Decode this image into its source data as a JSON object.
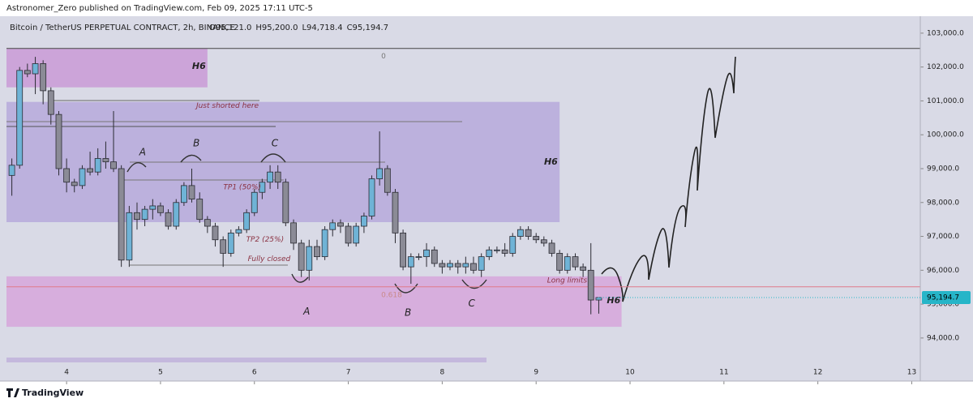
{
  "header": "Astronomer_Zero published on TradingView.com, Feb 09, 2025 17:11 UTC-5",
  "footer": "TradingView",
  "chart_data": {
    "type": "candlestick",
    "title": "Bitcoin / TetherUS PERPETUAL CONTRACT, 2h, BINANCE",
    "ohlc_text": [
      "O95,121.0",
      "H95,200.0",
      "L94,718.4",
      "C95,194.7"
    ],
    "x": [
      3.417,
      3.5,
      3.583,
      3.667,
      3.75,
      3.833,
      3.917,
      4,
      4.083,
      4.167,
      4.25,
      4.333,
      4.417,
      4.5,
      4.583,
      4.667,
      4.75,
      4.833,
      4.917,
      5,
      5.083,
      5.167,
      5.25,
      5.333,
      5.417,
      5.5,
      5.583,
      5.667,
      5.75,
      5.833,
      5.917,
      6,
      6.083,
      6.167,
      6.25,
      6.333,
      6.417,
      6.5,
      6.583,
      6.667,
      6.75,
      6.833,
      6.917,
      7,
      7.083,
      7.167,
      7.25,
      7.333,
      7.417,
      7.5,
      7.583,
      7.667,
      7.75,
      7.833,
      7.917,
      8,
      8.083,
      8.167,
      8.25,
      8.333,
      8.417,
      8.5,
      8.583,
      8.667,
      8.75,
      8.833,
      8.917,
      9,
      9.083,
      9.167,
      9.25,
      9.333,
      9.417,
      9.5,
      9.583,
      9.667
    ],
    "open": [
      98800,
      99100,
      101900,
      101800,
      102100,
      101300,
      100600,
      99000,
      98600,
      98500,
      99000,
      98900,
      99300,
      99200,
      99000,
      96300,
      97700,
      97500,
      97800,
      97900,
      97700,
      97300,
      98000,
      98500,
      98100,
      97500,
      97300,
      96900,
      96500,
      97100,
      97200,
      97700,
      98300,
      98600,
      98900,
      98600,
      97400,
      96800,
      96000,
      96700,
      96400,
      97200,
      97400,
      97300,
      96800,
      97300,
      97600,
      98700,
      99000,
      98300,
      97100,
      96100,
      96400,
      96400,
      96600,
      96200,
      96100,
      96200,
      96100,
      96200,
      96000,
      96400,
      96600,
      96600,
      96500,
      97000,
      97200,
      97000,
      96900,
      96800,
      96500,
      96000,
      96400,
      96100,
      96000,
      95121.0
    ],
    "high": [
      99300,
      102000,
      102100,
      102300,
      102200,
      101400,
      100700,
      99300,
      98700,
      99100,
      99500,
      99600,
      99800,
      100700,
      99100,
      97900,
      98000,
      97900,
      98100,
      98000,
      97800,
      98100,
      98600,
      99000,
      98300,
      97600,
      97400,
      97000,
      97200,
      97300,
      97800,
      98400,
      98700,
      99100,
      99100,
      98700,
      97500,
      96900,
      96900,
      96900,
      97300,
      97500,
      97500,
      97400,
      97400,
      97700,
      98800,
      100100,
      99100,
      98400,
      97200,
      96500,
      96500,
      96800,
      96700,
      96300,
      96300,
      96300,
      96400,
      96400,
      96500,
      96700,
      96700,
      96800,
      97100,
      97300,
      97300,
      97100,
      97000,
      96900,
      96600,
      96500,
      96500,
      96200,
      96800,
      95200.0
    ],
    "low": [
      98200,
      99000,
      101700,
      101200,
      100900,
      100300,
      98800,
      98300,
      98300,
      98400,
      98800,
      98800,
      99000,
      98900,
      96100,
      96100,
      97200,
      97300,
      97500,
      97600,
      97200,
      97200,
      97900,
      98000,
      97400,
      97100,
      96700,
      96100,
      96400,
      97000,
      97100,
      97600,
      98100,
      98400,
      98400,
      97300,
      96600,
      95800,
      95700,
      96300,
      96300,
      97000,
      97100,
      96700,
      96700,
      97100,
      97500,
      98500,
      98200,
      96800,
      96000,
      95600,
      96300,
      96100,
      96100,
      95900,
      96000,
      95900,
      95900,
      95900,
      95800,
      96300,
      96500,
      96400,
      96400,
      96900,
      96900,
      96800,
      96700,
      96400,
      95900,
      95900,
      96000,
      95800,
      94700,
      94718.4
    ],
    "close": [
      99100,
      101900,
      101800,
      102100,
      101300,
      100600,
      99000,
      98600,
      98500,
      99000,
      98900,
      99300,
      99200,
      99000,
      96300,
      97700,
      97500,
      97800,
      97900,
      97700,
      97300,
      98000,
      98500,
      98100,
      97500,
      97300,
      96900,
      96500,
      97100,
      97200,
      97700,
      98300,
      98600,
      98900,
      98600,
      97400,
      96800,
      96000,
      96700,
      96400,
      97200,
      97400,
      97300,
      96800,
      97300,
      97600,
      98700,
      99000,
      98300,
      97100,
      96100,
      96400,
      96400,
      96600,
      96200,
      96100,
      96200,
      96100,
      96200,
      96000,
      96400,
      96600,
      96600,
      96500,
      97000,
      97200,
      97000,
      96900,
      96800,
      96500,
      96000,
      96400,
      96100,
      96000,
      95121,
      95194.7
    ],
    "up_color": "#6fb3d6",
    "down_color": "#8b8b96",
    "xlim": [
      3.36,
      13.16
    ],
    "xticks": [
      4,
      5,
      6,
      7,
      8,
      9,
      10,
      11,
      12,
      13
    ],
    "ylim": [
      92920,
      103500
    ],
    "yticks": [
      {
        "value": 94000,
        "label": "94,000.0"
      },
      {
        "value": 95000,
        "label": "95,000.0"
      },
      {
        "value": 96000,
        "label": "96,000.0"
      },
      {
        "value": 97000,
        "label": "97,000.0"
      },
      {
        "value": 98000,
        "label": "98,000.0"
      },
      {
        "value": 99000,
        "label": "99,000.0"
      },
      {
        "value": 100000,
        "label": "100,000.0"
      },
      {
        "value": 101000,
        "label": "101,000.0"
      },
      {
        "value": 102000,
        "label": "102,000.0"
      },
      {
        "value": 103000,
        "label": "103,000.0"
      }
    ],
    "last_price": {
      "value": 95194.7,
      "label": "95,194.7"
    },
    "zones": [
      {
        "x": [
          3.36,
          5.5
        ],
        "y": [
          101400,
          102550
        ],
        "color": "#c99ad6"
      },
      {
        "x": [
          3.36,
          9.25
        ],
        "y": [
          97420,
          100970
        ],
        "color": "#b6a9db"
      },
      {
        "x": [
          3.36,
          9.91
        ],
        "y": [
          94330,
          95820
        ],
        "color": "#d6a6db"
      }
    ],
    "fib_levels": [
      {
        "value": 102550,
        "label": "0",
        "color": "#444444"
      },
      {
        "value": 95510,
        "label": "0.618",
        "color": "#e07a8a"
      }
    ],
    "annotations": [
      {
        "text": "H6",
        "x": 5.409,
        "y": 102020
      },
      {
        "text": "H6",
        "x": 9.157,
        "y": 99195
      },
      {
        "text": "H6",
        "x": 9.826,
        "y": 95100
      },
      {
        "text": "Just shorted here",
        "x": 5.713,
        "y": 100850
      },
      {
        "text": "TP1 (50%)",
        "x": 5.87,
        "y": 98455
      },
      {
        "text": "TP2 (25%)",
        "x": 6.113,
        "y": 96900
      },
      {
        "text": "Fully closed",
        "x": 6.157,
        "y": 96325
      },
      {
        "text": "Long limits",
        "x": 9.33,
        "y": 95700
      },
      {
        "text": "A",
        "x": 4.809,
        "y": 99480
      },
      {
        "text": "B",
        "x": 5.383,
        "y": 99745
      },
      {
        "text": "C",
        "x": 6.217,
        "y": 99745
      },
      {
        "text": "A",
        "x": 6.557,
        "y": 94770
      },
      {
        "text": "B",
        "x": 7.635,
        "y": 94745
      },
      {
        "text": "C",
        "x": 8.313,
        "y": 95010
      }
    ]
  }
}
